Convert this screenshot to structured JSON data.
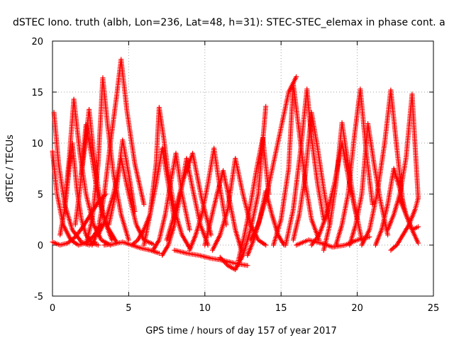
{
  "chart_data": {
    "type": "scatter",
    "title": "dSTEC Iono. truth (albh, Lon=236, Lat=48, h=31): STEC-STEC_elemax in phase cont. a",
    "xlabel": "GPS time / hours of day 157 of year 2017",
    "ylabel": "dSTEC  / TECUs",
    "xlim": [
      0,
      25
    ],
    "ylim": [
      -5,
      20
    ],
    "x_ticks": [
      "0",
      "5",
      "10",
      "15",
      "20",
      "25"
    ],
    "y_ticks": [
      "-5",
      "0",
      "5",
      "10",
      "15",
      "20"
    ],
    "grid": true,
    "marker": "+",
    "color": "#ff0000",
    "series": [
      {
        "x": [
          0.0,
          0.5,
          1.0,
          1.5,
          2.0,
          2.5,
          3.0,
          3.5
        ],
        "y": [
          0.3,
          0.0,
          0.2,
          0.8,
          1.8,
          3.0,
          4.2,
          5.0
        ]
      },
      {
        "x": [
          0.0,
          0.3,
          0.7,
          1.2,
          1.7,
          2.2,
          2.7,
          3.2
        ],
        "y": [
          9.2,
          5.0,
          2.0,
          0.5,
          0.0,
          0.2,
          0.9,
          2.0
        ]
      },
      {
        "x": [
          0.1,
          0.4,
          0.8,
          1.3,
          1.9,
          2.4,
          2.8
        ],
        "y": [
          13.0,
          8.0,
          4.0,
          1.5,
          0.3,
          0.0,
          0.3
        ]
      },
      {
        "x": [
          0.5,
          0.8,
          1.1,
          1.3,
          1.6,
          1.9,
          2.2,
          2.6,
          3.0
        ],
        "y": [
          1.0,
          3.5,
          7.5,
          10.0,
          5.5,
          2.5,
          1.0,
          0.2,
          0.0
        ]
      },
      {
        "x": [
          0.8,
          1.1,
          1.4,
          1.8,
          2.2,
          2.7,
          3.2,
          3.8
        ],
        "y": [
          4.0,
          8.5,
          14.3,
          9.0,
          5.0,
          2.0,
          0.5,
          0.0
        ]
      },
      {
        "x": [
          1.5,
          1.8,
          2.2,
          2.6,
          3.0,
          3.6,
          4.2
        ],
        "y": [
          2.0,
          5.5,
          11.8,
          8.5,
          4.5,
          1.8,
          0.3
        ]
      },
      {
        "x": [
          1.9,
          2.2,
          2.4,
          2.7,
          3.0,
          3.4,
          3.9
        ],
        "y": [
          7.0,
          10.5,
          13.3,
          9.0,
          5.5,
          2.5,
          0.5
        ]
      },
      {
        "x": [
          2.2,
          2.6,
          3.0,
          3.3,
          3.6,
          4.0,
          4.5,
          5.0
        ],
        "y": [
          0.1,
          2.5,
          8.0,
          16.4,
          12.0,
          7.0,
          3.0,
          0.5
        ]
      },
      {
        "x": [
          2.6,
          3.0,
          3.4,
          3.8,
          4.2,
          4.5,
          4.9,
          5.4,
          6.0
        ],
        "y": [
          0.0,
          1.5,
          5.0,
          10.0,
          14.5,
          18.2,
          13.0,
          8.0,
          4.0
        ]
      },
      {
        "x": [
          3.0,
          3.5,
          4.0,
          4.5,
          5.0,
          5.5,
          6.0,
          6.6
        ],
        "y": [
          1.0,
          2.5,
          5.0,
          8.5,
          5.0,
          2.0,
          0.5,
          0.1
        ]
      },
      {
        "x": [
          3.7,
          4.2,
          4.6,
          5.0,
          5.4
        ],
        "y": [
          2.0,
          5.5,
          10.3,
          7.0,
          3.3
        ]
      },
      {
        "x": [
          3.4,
          4.0,
          4.6,
          5.2,
          5.8,
          6.4,
          7.0
        ],
        "y": [
          0.0,
          0.1,
          0.3,
          0.0,
          -0.3,
          -0.5,
          -0.8
        ]
      },
      {
        "x": [
          5.2,
          5.6,
          6.0,
          6.4,
          6.8,
          7.2,
          7.6,
          8.0
        ],
        "y": [
          0.0,
          0.5,
          1.5,
          3.0,
          6.0,
          9.5,
          6.0,
          2.5
        ]
      },
      {
        "x": [
          6.0,
          6.4,
          6.8,
          7.0,
          7.3,
          7.6,
          8.0,
          8.5,
          9.0
        ],
        "y": [
          0.0,
          3.0,
          8.0,
          13.5,
          10.5,
          7.0,
          3.5,
          1.0,
          -0.3
        ]
      },
      {
        "x": [
          6.6,
          7.0,
          7.4,
          7.8,
          8.1,
          8.5,
          9.0
        ],
        "y": [
          -0.5,
          0.5,
          3.0,
          6.5,
          9.0,
          5.0,
          1.5
        ]
      },
      {
        "x": [
          7.2,
          7.6,
          8.0,
          8.4,
          8.8,
          9.2,
          9.7,
          10.2
        ],
        "y": [
          -1.0,
          0.0,
          2.0,
          5.0,
          8.5,
          5.5,
          2.0,
          0.0
        ]
      },
      {
        "x": [
          7.5,
          8.0,
          8.6,
          9.2,
          9.8,
          10.4
        ],
        "y": [
          0.5,
          3.0,
          6.5,
          9.0,
          4.5,
          1.0
        ]
      },
      {
        "x": [
          8.0,
          8.8,
          9.6,
          10.4,
          11.2,
          12.0,
          12.8
        ],
        "y": [
          -0.5,
          -0.8,
          -1.0,
          -1.3,
          -1.5,
          -1.8,
          -2.0
        ]
      },
      {
        "x": [
          9.0,
          9.4,
          9.8,
          10.2,
          10.6,
          11.0,
          11.4
        ],
        "y": [
          -0.5,
          1.0,
          3.0,
          6.0,
          9.5,
          5.5,
          2.0
        ]
      },
      {
        "x": [
          10.0,
          10.4,
          10.8,
          11.2,
          11.6,
          12.0,
          12.4
        ],
        "y": [
          0.0,
          2.5,
          5.0,
          7.3,
          4.5,
          1.5,
          -0.5
        ]
      },
      {
        "x": [
          10.5,
          11.0,
          11.5,
          12.0,
          12.5,
          13.0,
          13.5,
          14.0
        ],
        "y": [
          -0.5,
          1.0,
          3.5,
          8.5,
          5.0,
          2.0,
          0.5,
          0.0
        ]
      },
      {
        "x": [
          11.0,
          11.5,
          12.0,
          12.5,
          13.0,
          13.5,
          14.0
        ],
        "y": [
          -1.2,
          -2.0,
          -2.4,
          -1.0,
          1.5,
          5.0,
          13.6
        ]
      },
      {
        "x": [
          12.2,
          12.6,
          13.0,
          13.4,
          13.8,
          14.2
        ],
        "y": [
          -1.5,
          1.0,
          4.0,
          7.5,
          10.5,
          5.0
        ]
      },
      {
        "x": [
          12.8,
          13.2,
          13.6,
          14.0,
          14.4,
          14.8,
          15.2
        ],
        "y": [
          -1.0,
          0.5,
          2.5,
          5.3,
          3.0,
          1.0,
          0.0
        ]
      },
      {
        "x": [
          13.0,
          13.5,
          14.0,
          14.5,
          15.0,
          15.5,
          16.0
        ],
        "y": [
          0.5,
          2.0,
          4.5,
          8.0,
          11.5,
          15.0,
          16.5
        ]
      },
      {
        "x": [
          14.5,
          15.0,
          15.5,
          15.8,
          16.2,
          16.6,
          17.0,
          17.5
        ],
        "y": [
          0.0,
          2.5,
          7.5,
          15.8,
          11.0,
          6.0,
          2.5,
          0.5
        ]
      },
      {
        "x": [
          15.3,
          15.8,
          16.3,
          16.7,
          17.0,
          17.4,
          17.8
        ],
        "y": [
          0.0,
          3.5,
          9.5,
          15.3,
          10.5,
          6.0,
          2.5
        ]
      },
      {
        "x": [
          15.8,
          16.2,
          16.6,
          17.0,
          17.4,
          17.8,
          18.2
        ],
        "y": [
          0.5,
          3.0,
          7.0,
          13.0,
          9.5,
          5.5,
          2.0
        ]
      },
      {
        "x": [
          16.0,
          16.8,
          17.6,
          18.4,
          19.2,
          20.0,
          20.8
        ],
        "y": [
          0.0,
          0.5,
          0.2,
          -0.2,
          0.0,
          0.5,
          0.8
        ]
      },
      {
        "x": [
          17.0,
          17.5,
          18.0,
          18.5,
          19.0,
          19.5,
          20.0
        ],
        "y": [
          0.0,
          1.0,
          3.0,
          6.0,
          10.0,
          6.0,
          2.5
        ]
      },
      {
        "x": [
          17.8,
          18.2,
          18.6,
          19.0,
          19.4,
          19.8,
          20.3
        ],
        "y": [
          -0.5,
          2.0,
          6.0,
          12.0,
          8.0,
          4.0,
          0.5
        ]
      },
      {
        "x": [
          18.6,
          19.0,
          19.4,
          19.8,
          20.2,
          20.6,
          21.0
        ],
        "y": [
          0.0,
          2.0,
          5.0,
          10.5,
          15.3,
          9.0,
          4.0
        ]
      },
      {
        "x": [
          19.5,
          19.9,
          20.3,
          20.7,
          21.1,
          21.5,
          22.0
        ],
        "y": [
          0.0,
          2.0,
          5.0,
          11.9,
          8.0,
          4.5,
          1.0
        ]
      },
      {
        "x": [
          20.3,
          20.8,
          21.3,
          21.8,
          22.2,
          22.6,
          23.0
        ],
        "y": [
          0.0,
          1.5,
          5.0,
          10.0,
          15.2,
          9.5,
          4.0
        ]
      },
      {
        "x": [
          21.2,
          21.6,
          22.0,
          22.4,
          22.8,
          23.2,
          23.6,
          24.0
        ],
        "y": [
          0.0,
          1.5,
          4.0,
          7.5,
          5.5,
          3.0,
          1.5,
          1.8
        ]
      },
      {
        "x": [
          22.0,
          22.4,
          22.8,
          23.2,
          23.6,
          24.0
        ],
        "y": [
          1.5,
          3.0,
          5.0,
          8.5,
          14.8,
          4.6
        ]
      },
      {
        "x": [
          22.2,
          22.6,
          23.0,
          23.4,
          23.8,
          24.0
        ],
        "y": [
          -0.5,
          0.0,
          1.0,
          2.0,
          3.5,
          4.6
        ]
      },
      {
        "x": [
          22.8,
          23.2,
          23.6,
          24.0
        ],
        "y": [
          4.5,
          3.0,
          1.5,
          0.2
        ]
      }
    ]
  }
}
